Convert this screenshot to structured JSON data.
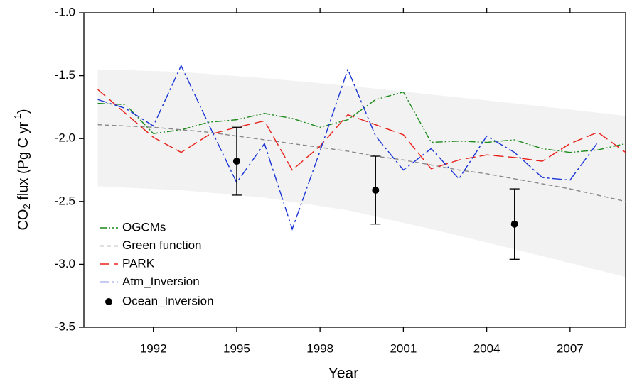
{
  "chart_data": {
    "type": "line",
    "xlabel": "Year",
    "ylabel": [
      "CO",
      "2",
      " flux (Pg C yr",
      "-1",
      ")"
    ],
    "xlim": [
      1989.5,
      2009
    ],
    "ylim": [
      -3.5,
      -1
    ],
    "xticks": [
      1992,
      1995,
      1998,
      2001,
      2004,
      2007
    ],
    "yticks": [
      {
        "value": -1,
        "label": "-1.0"
      },
      -1.5,
      {
        "value": -2,
        "label": "-2.0"
      },
      -2.5,
      {
        "value": -3,
        "label": "-3.0"
      },
      -3.5
    ],
    "band": {
      "x": [
        1990,
        1993,
        1996,
        1999,
        2002,
        2005,
        2009
      ],
      "upper": [
        -1.45,
        -1.47,
        -1.52,
        -1.58,
        -1.65,
        -1.72,
        -1.82
      ],
      "lower": [
        -2.38,
        -2.41,
        -2.47,
        -2.57,
        -2.72,
        -2.88,
        -3.1
      ],
      "color": "#f2f2f2"
    },
    "x": [
      1990,
      1991,
      1992,
      1993,
      1994,
      1995,
      1996,
      1997,
      1998,
      1999,
      2000,
      2001,
      2002,
      2003,
      2004,
      2005,
      2006,
      2007,
      2008,
      2009
    ],
    "series": [
      {
        "name": "OGCMs",
        "color": "#1a8a1a",
        "dash": "10 3 2 3 2 3",
        "values": [
          -1.72,
          -1.73,
          -1.96,
          -1.93,
          -1.87,
          -1.85,
          -1.8,
          -1.84,
          -1.91,
          -1.85,
          -1.69,
          -1.63,
          -2.03,
          -2.02,
          -2.03,
          -2.01,
          -2.08,
          -2.11,
          -2.09,
          -2.04
        ]
      },
      {
        "name": "Green function",
        "color": "#888888",
        "dash": "6 4",
        "values": [
          -1.89,
          -1.9,
          -1.91,
          -1.93,
          -1.95,
          -1.98,
          -2.01,
          -2.04,
          -2.07,
          -2.1,
          -2.14,
          -2.17,
          -2.21,
          -2.25,
          -2.28,
          -2.32,
          -2.36,
          -2.4,
          -2.45,
          -2.5
        ]
      },
      {
        "name": "PARK",
        "color": "#e8201a",
        "dash": "14 6",
        "values": [
          -1.61,
          -1.8,
          -1.99,
          -2.11,
          -1.97,
          -1.91,
          -1.86,
          -2.25,
          -2.06,
          -1.81,
          -1.89,
          -1.97,
          -2.24,
          -2.17,
          -2.13,
          -2.15,
          -2.18,
          -2.04,
          -1.95,
          -2.11
        ]
      },
      {
        "name": "Atm_Inversion",
        "color": "#1a35d6",
        "dash": "14 4 3 4",
        "values": [
          -1.69,
          -1.76,
          -1.9,
          -1.42,
          -1.89,
          -2.35,
          -2.04,
          -2.72,
          -2.1,
          -1.45,
          -1.98,
          -2.25,
          -2.08,
          -2.32,
          -1.98,
          -2.11,
          -2.31,
          -2.33,
          -2.03,
          null
        ]
      }
    ],
    "points": {
      "name": "Ocean_Inversion",
      "color": "#000000",
      "x": [
        1995,
        2000,
        2005
      ],
      "values": [
        -2.18,
        -2.41,
        -2.68
      ],
      "errors": [
        0.27,
        0.27,
        0.28
      ]
    }
  }
}
